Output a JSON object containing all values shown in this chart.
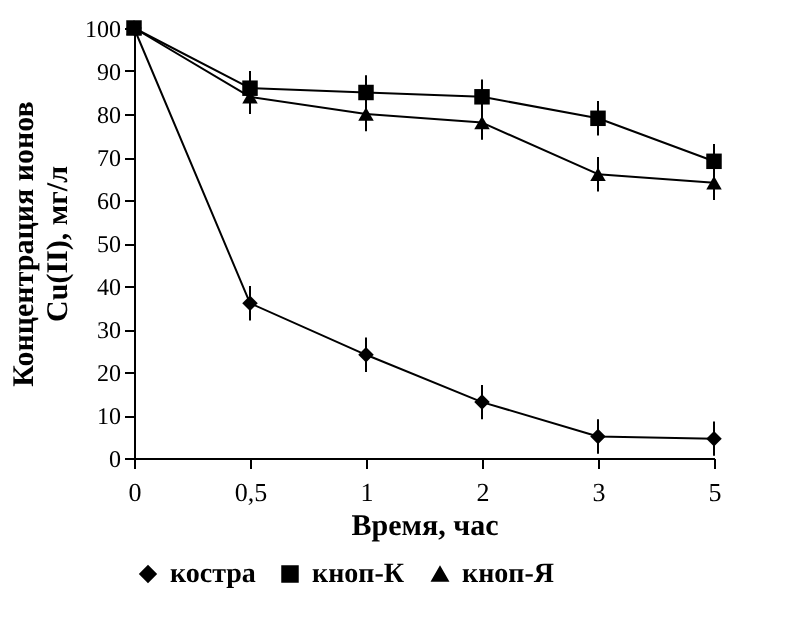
{
  "chart_data": {
    "type": "line",
    "xlabel": "Время, час",
    "ylabel": "Концентрация ионов\nCu(II), мг/л",
    "categories": [
      "0",
      "0,5",
      "1",
      "2",
      "3",
      "5"
    ],
    "series": [
      {
        "name": "костра",
        "color": "#000000",
        "marker": "diamond",
        "values": [
          100,
          36,
          24,
          13,
          5,
          4.5
        ],
        "errors": [
          null,
          4,
          4,
          4,
          4,
          4
        ]
      },
      {
        "name": "кноп-К",
        "color": "#000000",
        "marker": "square",
        "values": [
          100,
          86,
          85,
          84,
          79,
          69
        ],
        "errors": [
          null,
          4,
          4,
          4,
          4,
          4
        ]
      },
      {
        "name": "кноп-Я",
        "color": "#000000",
        "marker": "triangle",
        "values": [
          100,
          84,
          80,
          78,
          66,
          64
        ],
        "errors": [
          null,
          4,
          4,
          4,
          4,
          4
        ]
      }
    ],
    "ylim": [
      0,
      100
    ],
    "yticks": [
      0,
      10,
      20,
      30,
      40,
      50,
      60,
      70,
      80,
      90,
      100
    ],
    "grid": false,
    "legend": "bottom",
    "line_style": "solid"
  }
}
